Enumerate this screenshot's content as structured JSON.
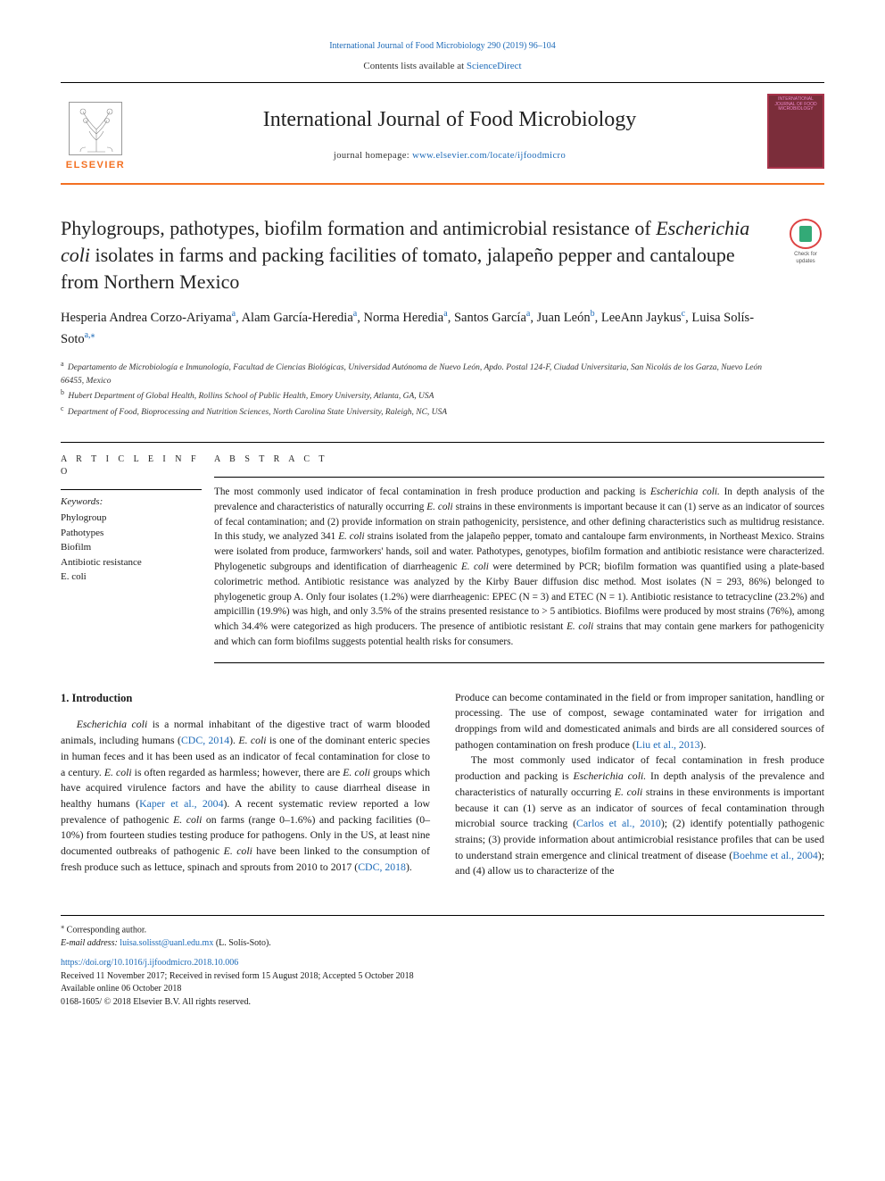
{
  "colors": {
    "link": "#1e6bb8",
    "elsevier_orange": "#f37022",
    "text": "#1a1a1a",
    "cover_bg": "#7b2d3a"
  },
  "typography": {
    "body_font": "Georgia, 'Times New Roman', serif",
    "paper_title_fontsize": 22,
    "journal_name_fontsize": 24,
    "authors_fontsize": 14.5,
    "abstract_fontsize": 11.2,
    "body_fontsize": 11.8,
    "footer_fontsize": 10
  },
  "header": {
    "top_link_text": "International Journal of Food Microbiology 290 (2019) 96–104",
    "contents_prefix": "Contents lists available at ",
    "contents_link": "ScienceDirect",
    "journal_name": "International Journal of Food Microbiology",
    "home_prefix": "journal homepage: ",
    "home_url": "www.elsevier.com/locate/ijfoodmicro",
    "elsevier_label": "ELSEVIER",
    "cover_caption": "INTERNATIONAL JOURNAL OF FOOD MICROBIOLOGY"
  },
  "updates_badge": {
    "caption": "Check for updates"
  },
  "title": {
    "line1_pre": "Phylogroups, pathotypes, biofilm formation and antimicrobial resistance of ",
    "line1_italic": "Escherichia coli",
    "line1_post": " isolates in farms and packing facilities of tomato, jalapeño pepper and cantaloupe from Northern Mexico"
  },
  "authors": [
    {
      "name": "Hesperia Andrea Corzo-Ariyama",
      "aff": "a"
    },
    {
      "name": "Alam García-Heredia",
      "aff": "a"
    },
    {
      "name": "Norma Heredia",
      "aff": "a"
    },
    {
      "name": "Santos García",
      "aff": "a"
    },
    {
      "name": "Juan León",
      "aff": "b"
    },
    {
      "name": "LeeAnn Jaykus",
      "aff": "c"
    },
    {
      "name": "Luisa Solís-Soto",
      "aff": "a",
      "corr": true
    }
  ],
  "affiliations": [
    {
      "label": "a",
      "text": "Departamento de Microbiología e Inmunología, Facultad de Ciencias Biológicas, Universidad Autónoma de Nuevo León, Apdo. Postal 124-F, Ciudad Universitaria, San Nicolás de los Garza, Nuevo León 66455, Mexico"
    },
    {
      "label": "b",
      "text": "Hubert Department of Global Health, Rollins School of Public Health, Emory University, Atlanta, GA, USA"
    },
    {
      "label": "c",
      "text": "Department of Food, Bioprocessing and Nutrition Sciences, North Carolina State University, Raleigh, NC, USA"
    }
  ],
  "article_info": {
    "heading": "A R T I C L E  I N F O",
    "kw_heading": "Keywords:",
    "keywords": [
      "Phylogroup",
      "Pathotypes",
      "Biofilm",
      "Antibiotic resistance",
      "E. coli"
    ]
  },
  "abstract": {
    "heading": "A B S T R A C T",
    "text_parts": [
      {
        "t": "The most commonly used indicator of fecal contamination in fresh produce production and packing is "
      },
      {
        "t": "Escherichia coli.",
        "i": true
      },
      {
        "t": " In depth analysis of the prevalence and characteristics of naturally occurring "
      },
      {
        "t": "E. coli",
        "i": true
      },
      {
        "t": " strains in these environments is important because it can (1) serve as an indicator of sources of fecal contamination; and (2) provide information on strain pathogenicity, persistence, and other defining characteristics such as multidrug resistance. In this study, we analyzed 341 "
      },
      {
        "t": "E. coli",
        "i": true
      },
      {
        "t": " strains isolated from the jalapeño pepper, tomato and cantaloupe farm environments, in Northeast Mexico. Strains were isolated from produce, farmworkers' hands, soil and water. Pathotypes, genotypes, biofilm formation and antibiotic resistance were characterized. Phylogenetic subgroups and identification of diarrheagenic "
      },
      {
        "t": "E. coli",
        "i": true
      },
      {
        "t": " were determined by PCR; biofilm formation was quantified using a plate-based colorimetric method. Antibiotic resistance was analyzed by the Kirby Bauer diffusion disc method. Most isolates (N = 293, 86%) belonged to phylogenetic group A. Only four isolates (1.2%) were diarrheagenic: EPEC (N = 3) and ETEC (N = 1). Antibiotic resistance to tetracycline (23.2%) and ampicillin (19.9%) was high, and only 3.5% of the strains presented resistance to > 5 antibiotics. Biofilms were produced by most strains (76%), among which 34.4% were categorized as high producers. The presence of antibiotic resistant "
      },
      {
        "t": "E. coli",
        "i": true
      },
      {
        "t": " strains that may contain gene markers for pathogenicity and which can form biofilms suggests potential health risks for consumers."
      }
    ]
  },
  "body": {
    "section_heading": "1. Introduction",
    "col1_parts": [
      {
        "t": "Escherichia coli",
        "i": true,
        "first": true
      },
      {
        "t": " is a normal inhabitant of the digestive tract of warm blooded animals, including humans ("
      },
      {
        "t": "CDC, 2014",
        "link": true
      },
      {
        "t": "). "
      },
      {
        "t": "E. coli",
        "i": true
      },
      {
        "t": " is one of the dominant enteric species in human feces and it has been used as an indicator of fecal contamination for close to a century. "
      },
      {
        "t": "E. coli",
        "i": true
      },
      {
        "t": " is often regarded as harmless; however, there are "
      },
      {
        "t": "E. coli",
        "i": true
      },
      {
        "t": " groups which have acquired virulence factors and have the ability to cause diarrheal disease in healthy humans ("
      },
      {
        "t": "Kaper et al., 2004",
        "link": true
      },
      {
        "t": "). A recent systematic review reported a low prevalence of pathogenic "
      },
      {
        "t": "E. coli",
        "i": true
      },
      {
        "t": " on farms (range 0–1.6%) and packing facilities (0–10%) from fourteen studies testing produce for pathogens. Only in the US, at least nine documented outbreaks of pathogenic "
      },
      {
        "t": "E. coli",
        "i": true
      },
      {
        "t": " have been linked to the consumption of fresh produce such as lettuce, spinach and sprouts from 2010 to 2017 ("
      },
      {
        "t": "CDC, 2018",
        "link": true
      },
      {
        "t": "). "
      }
    ],
    "col2_para1_parts": [
      {
        "t": "Produce can become contaminated in the field or from improper sanitation, handling or processing. The use of compost, sewage contaminated water for irrigation and droppings from wild and domesticated animals and birds are all considered sources of pathogen contamination on fresh produce (",
        "noindent": true
      },
      {
        "t": "Liu et al., 2013",
        "link": true
      },
      {
        "t": ")."
      }
    ],
    "col2_para2_parts": [
      {
        "t": "The most commonly used indicator of fecal contamination in fresh produce production and packing is "
      },
      {
        "t": "Escherichia coli.",
        "i": true
      },
      {
        "t": " In depth analysis of the prevalence and characteristics of naturally occurring "
      },
      {
        "t": "E. coli",
        "i": true
      },
      {
        "t": " strains in these environments is important because it can (1) serve as an indicator of sources of fecal contamination through microbial source tracking ("
      },
      {
        "t": "Carlos et al., 2010",
        "link": true
      },
      {
        "t": "); (2) identify potentially pathogenic strains; (3) provide information about antimicrobial resistance profiles that can be used to understand strain emergence and clinical treatment of disease ("
      },
      {
        "t": "Boehme et al., 2004",
        "link": true
      },
      {
        "t": "); and (4) allow us to characterize of the"
      }
    ]
  },
  "footer": {
    "corr_symbol": "⁎",
    "corr_text": "Corresponding author.",
    "email_label": "E-mail address:",
    "email": "luisa.solisst@uanl.edu.mx",
    "email_name": "(L. Solís-Soto).",
    "doi": "https://doi.org/10.1016/j.ijfoodmicro.2018.10.006",
    "history": "Received 11 November 2017; Received in revised form 15 August 2018; Accepted 5 October 2018",
    "available": "Available online 06 October 2018",
    "copyright": "0168-1605/ © 2018 Elsevier B.V. All rights reserved."
  }
}
